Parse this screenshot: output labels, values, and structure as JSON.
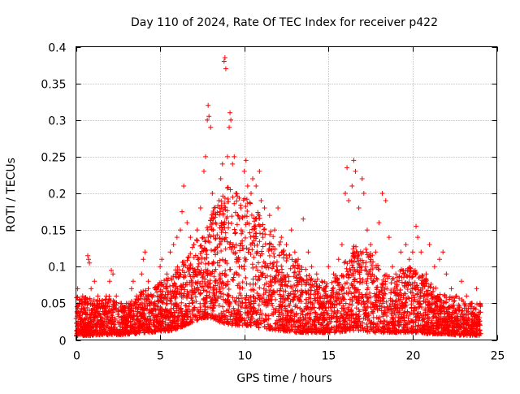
{
  "chart_data": {
    "type": "scatter",
    "title": "Day 110 of 2024, Rate Of TEC Index for receiver p422",
    "xlabel": "GPS time / hours",
    "ylabel": "ROTI / TECUs",
    "xlim": [
      0,
      25
    ],
    "ylim": [
      0,
      0.4
    ],
    "xticks": [
      0,
      5,
      10,
      15,
      20,
      25
    ],
    "xtick_labels": [
      "0",
      "5",
      "10",
      "15",
      "20",
      "25"
    ],
    "yticks": [
      0,
      0.05,
      0.1,
      0.15,
      0.2,
      0.25,
      0.3,
      0.35,
      0.4
    ],
    "ytick_labels": [
      "0",
      "0.05",
      "0.1",
      "0.15",
      "0.2",
      "0.25",
      "0.3",
      "0.35",
      "0.4"
    ],
    "grid": true,
    "marker": "+",
    "color": "#ff0000",
    "series": [
      {
        "name": "ROTI",
        "points": [
          [
            0.1,
            0.07
          ],
          [
            0.2,
            0.05
          ],
          [
            0.4,
            0.06
          ],
          [
            0.6,
            0.05
          ],
          [
            0.7,
            0.115
          ],
          [
            0.75,
            0.11
          ],
          [
            0.8,
            0.105
          ],
          [
            0.9,
            0.07
          ],
          [
            1.1,
            0.08
          ],
          [
            1.3,
            0.06
          ],
          [
            1.5,
            0.05
          ],
          [
            1.8,
            0.06
          ],
          [
            2.0,
            0.08
          ],
          [
            2.1,
            0.095
          ],
          [
            2.2,
            0.09
          ],
          [
            2.4,
            0.06
          ],
          [
            2.7,
            0.05
          ],
          [
            3.0,
            0.05
          ],
          [
            3.3,
            0.07
          ],
          [
            3.4,
            0.08
          ],
          [
            3.6,
            0.06
          ],
          [
            3.9,
            0.09
          ],
          [
            4.0,
            0.11
          ],
          [
            4.1,
            0.12
          ],
          [
            4.3,
            0.08
          ],
          [
            4.5,
            0.06
          ],
          [
            4.8,
            0.07
          ],
          [
            5.0,
            0.1
          ],
          [
            5.1,
            0.11
          ],
          [
            5.4,
            0.09
          ],
          [
            5.6,
            0.12
          ],
          [
            5.8,
            0.13
          ],
          [
            6.0,
            0.14
          ],
          [
            6.2,
            0.15
          ],
          [
            6.3,
            0.175
          ],
          [
            6.4,
            0.21
          ],
          [
            6.6,
            0.16
          ],
          [
            6.8,
            0.14
          ],
          [
            7.0,
            0.13
          ],
          [
            7.2,
            0.15
          ],
          [
            7.4,
            0.18
          ],
          [
            7.6,
            0.23
          ],
          [
            7.7,
            0.25
          ],
          [
            7.8,
            0.3
          ],
          [
            7.85,
            0.32
          ],
          [
            7.9,
            0.305
          ],
          [
            8.0,
            0.29
          ],
          [
            8.1,
            0.2
          ],
          [
            8.2,
            0.18
          ],
          [
            8.3,
            0.16
          ],
          [
            8.5,
            0.19
          ],
          [
            8.6,
            0.22
          ],
          [
            8.7,
            0.24
          ],
          [
            8.8,
            0.38
          ],
          [
            8.85,
            0.385
          ],
          [
            8.9,
            0.37
          ],
          [
            9.0,
            0.25
          ],
          [
            9.1,
            0.29
          ],
          [
            9.15,
            0.31
          ],
          [
            9.2,
            0.3
          ],
          [
            9.3,
            0.24
          ],
          [
            9.4,
            0.25
          ],
          [
            9.5,
            0.2
          ],
          [
            9.6,
            0.17
          ],
          [
            9.8,
            0.18
          ],
          [
            10.0,
            0.23
          ],
          [
            10.1,
            0.245
          ],
          [
            10.2,
            0.21
          ],
          [
            10.4,
            0.2
          ],
          [
            10.5,
            0.22
          ],
          [
            10.7,
            0.21
          ],
          [
            10.9,
            0.23
          ],
          [
            11.0,
            0.19
          ],
          [
            11.2,
            0.18
          ],
          [
            11.5,
            0.17
          ],
          [
            11.8,
            0.15
          ],
          [
            12.0,
            0.18
          ],
          [
            12.2,
            0.14
          ],
          [
            12.5,
            0.13
          ],
          [
            12.8,
            0.15
          ],
          [
            13.0,
            0.12
          ],
          [
            13.2,
            0.11
          ],
          [
            13.5,
            0.165
          ],
          [
            13.8,
            0.12
          ],
          [
            14.0,
            0.1
          ],
          [
            14.3,
            0.09
          ],
          [
            14.6,
            0.08
          ],
          [
            15.0,
            0.1
          ],
          [
            15.3,
            0.09
          ],
          [
            15.6,
            0.11
          ],
          [
            15.8,
            0.13
          ],
          [
            16.0,
            0.2
          ],
          [
            16.1,
            0.235
          ],
          [
            16.2,
            0.19
          ],
          [
            16.4,
            0.21
          ],
          [
            16.5,
            0.245
          ],
          [
            16.6,
            0.23
          ],
          [
            16.8,
            0.18
          ],
          [
            17.0,
            0.22
          ],
          [
            17.1,
            0.2
          ],
          [
            17.3,
            0.15
          ],
          [
            17.5,
            0.13
          ],
          [
            17.8,
            0.12
          ],
          [
            18.0,
            0.16
          ],
          [
            18.2,
            0.2
          ],
          [
            18.4,
            0.19
          ],
          [
            18.6,
            0.14
          ],
          [
            18.8,
            0.1
          ],
          [
            19.0,
            0.09
          ],
          [
            19.3,
            0.12
          ],
          [
            19.6,
            0.13
          ],
          [
            19.8,
            0.11
          ],
          [
            20.0,
            0.12
          ],
          [
            20.2,
            0.155
          ],
          [
            20.3,
            0.14
          ],
          [
            20.5,
            0.12
          ],
          [
            20.8,
            0.09
          ],
          [
            21.0,
            0.13
          ],
          [
            21.3,
            0.1
          ],
          [
            21.6,
            0.11
          ],
          [
            21.8,
            0.12
          ],
          [
            22.0,
            0.09
          ],
          [
            22.3,
            0.07
          ],
          [
            22.6,
            0.06
          ],
          [
            22.9,
            0.08
          ],
          [
            23.2,
            0.06
          ],
          [
            23.5,
            0.05
          ],
          [
            23.8,
            0.07
          ],
          [
            24.0,
            0.05
          ]
        ],
        "density_bins": {
          "x_start": 0,
          "x_step": 0.5,
          "ceiling": [
            0.06,
            0.06,
            0.055,
            0.055,
            0.06,
            0.05,
            0.05,
            0.055,
            0.07,
            0.07,
            0.08,
            0.085,
            0.1,
            0.11,
            0.13,
            0.15,
            0.17,
            0.19,
            0.21,
            0.2,
            0.2,
            0.19,
            0.17,
            0.15,
            0.14,
            0.12,
            0.11,
            0.1,
            0.09,
            0.08,
            0.08,
            0.09,
            0.11,
            0.13,
            0.13,
            0.12,
            0.1,
            0.09,
            0.09,
            0.1,
            0.1,
            0.09,
            0.08,
            0.07,
            0.06,
            0.06,
            0.055,
            0.05
          ],
          "floor": [
            0.005,
            0.006,
            0.006,
            0.007,
            0.007,
            0.007,
            0.008,
            0.008,
            0.01,
            0.01,
            0.012,
            0.012,
            0.015,
            0.02,
            0.025,
            0.03,
            0.03,
            0.025,
            0.02,
            0.02,
            0.02,
            0.018,
            0.015,
            0.015,
            0.012,
            0.012,
            0.01,
            0.01,
            0.01,
            0.01,
            0.01,
            0.01,
            0.012,
            0.012,
            0.012,
            0.01,
            0.01,
            0.01,
            0.01,
            0.01,
            0.01,
            0.01,
            0.008,
            0.008,
            0.008,
            0.007,
            0.006,
            0.006
          ]
        }
      }
    ]
  }
}
